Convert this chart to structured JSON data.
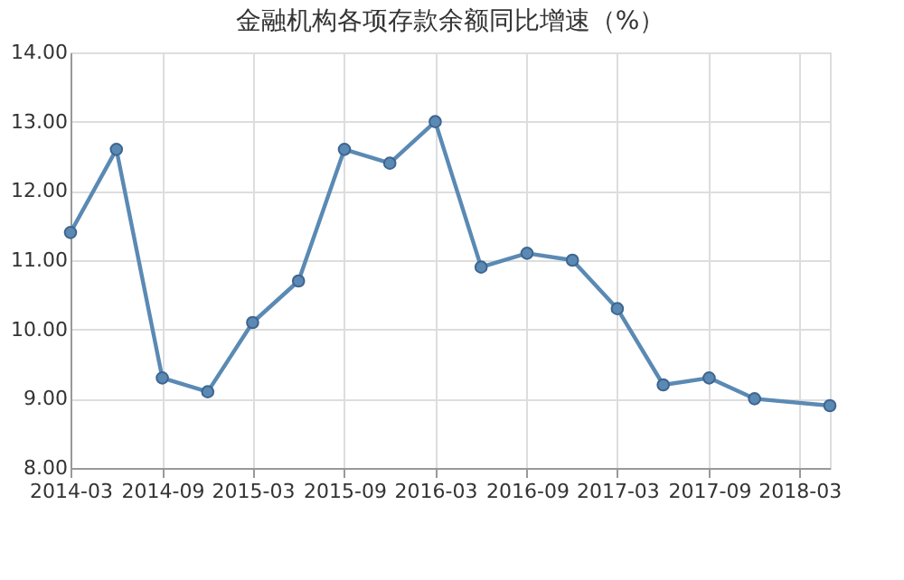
{
  "chart_data": {
    "type": "line",
    "title": "金融机构各项存款余额同比增速（%）",
    "x": [
      "2014-03",
      "2014-06",
      "2014-09",
      "2014-12",
      "2015-03",
      "2015-06",
      "2015-09",
      "2015-12",
      "2016-03",
      "2016-06",
      "2016-09",
      "2016-12",
      "2017-03",
      "2017-06",
      "2017-09",
      "2017-12",
      "2018-05"
    ],
    "series": [
      {
        "color": "#5a8ab4",
        "values": [
          11.4,
          12.6,
          9.3,
          9.1,
          10.1,
          10.7,
          12.6,
          12.4,
          13.0,
          10.9,
          11.1,
          11.0,
          10.3,
          9.2,
          9.3,
          9.0,
          8.9
        ]
      }
    ],
    "xlim": [
      "2014-03",
      "2018-05"
    ],
    "xticks": [
      "2014-03",
      "2014-09",
      "2015-03",
      "2015-09",
      "2016-03",
      "2016-09",
      "2017-03",
      "2017-09",
      "2018-03"
    ],
    "ylim": [
      8,
      14
    ],
    "yticks": [
      {
        "value": 8,
        "label": "8.00"
      },
      {
        "value": 9,
        "label": "9.00"
      },
      {
        "value": 10,
        "label": "10.00"
      },
      {
        "value": 11,
        "label": "11.00"
      },
      {
        "value": 12,
        "label": "12.00"
      },
      {
        "value": 13,
        "label": "13.00"
      },
      {
        "value": 14,
        "label": "14.00"
      }
    ],
    "grid": true,
    "marker": "circle",
    "line_style": "solid"
  }
}
